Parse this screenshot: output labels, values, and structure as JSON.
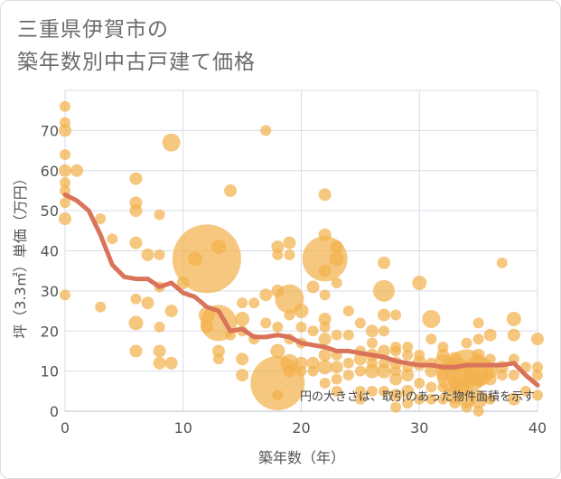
{
  "title_lines": [
    "三重県伊賀市の",
    "築年数別中古戸建て価格"
  ],
  "chart_data": {
    "type": "scatter",
    "xlabel": "築年数（年）",
    "ylabel": "坪（3.3㎡）単価（万円）",
    "xlim": [
      0,
      40
    ],
    "ylim": [
      0,
      80
    ],
    "x_ticks": [
      0,
      10,
      20,
      30,
      40
    ],
    "y_ticks": [
      0,
      10,
      20,
      30,
      40,
      50,
      60,
      70
    ],
    "grid": true,
    "note": "円の大きさは、取引のあった物件面積を示す",
    "colors": {
      "bubble": "#f2b24c",
      "line": "#d9735a",
      "grid": "#d7dde6"
    },
    "series": [
      {
        "type": "scatter",
        "points": [
          [
            0,
            76,
            6
          ],
          [
            0,
            72,
            6
          ],
          [
            0,
            70,
            7
          ],
          [
            0,
            64,
            6
          ],
          [
            0,
            60,
            7
          ],
          [
            0,
            57,
            6
          ],
          [
            0,
            55,
            6
          ],
          [
            0,
            52,
            6
          ],
          [
            0,
            48,
            7
          ],
          [
            0,
            29,
            6
          ],
          [
            1,
            60,
            7
          ],
          [
            3,
            48,
            6
          ],
          [
            3,
            26,
            6
          ],
          [
            4,
            43,
            6
          ],
          [
            6,
            58,
            7
          ],
          [
            6,
            52,
            7
          ],
          [
            6,
            50,
            7
          ],
          [
            6,
            42,
            7
          ],
          [
            6,
            28,
            6
          ],
          [
            6,
            22,
            8
          ],
          [
            6,
            15,
            7
          ],
          [
            7,
            39,
            7
          ],
          [
            7,
            27,
            7
          ],
          [
            8,
            49,
            6
          ],
          [
            8,
            39,
            6
          ],
          [
            8,
            31,
            6
          ],
          [
            8,
            21,
            6
          ],
          [
            8,
            15,
            7
          ],
          [
            8,
            12,
            7
          ],
          [
            9,
            67,
            10
          ],
          [
            9,
            25,
            7
          ],
          [
            9,
            12,
            7
          ],
          [
            10,
            32,
            7
          ],
          [
            11,
            38,
            8
          ],
          [
            12,
            38,
            38
          ],
          [
            12,
            24,
            9
          ],
          [
            12,
            21,
            7
          ],
          [
            13,
            41,
            8
          ],
          [
            13,
            22,
            20
          ],
          [
            13,
            15,
            7
          ],
          [
            13,
            13,
            6
          ],
          [
            14,
            55,
            7
          ],
          [
            14,
            19,
            6
          ],
          [
            15,
            27,
            6
          ],
          [
            15,
            23,
            8
          ],
          [
            15,
            20,
            6
          ],
          [
            15,
            13,
            7
          ],
          [
            15,
            9,
            7
          ],
          [
            16,
            27,
            6
          ],
          [
            16,
            18,
            6
          ],
          [
            17,
            70,
            6
          ],
          [
            17,
            29,
            7
          ],
          [
            17,
            22,
            6
          ],
          [
            18,
            41,
            7
          ],
          [
            18,
            39,
            6
          ],
          [
            18,
            30,
            7
          ],
          [
            18,
            21,
            6
          ],
          [
            18,
            15,
            8
          ],
          [
            18,
            7,
            30
          ],
          [
            18,
            4,
            6
          ],
          [
            19,
            42,
            7
          ],
          [
            19,
            39,
            6
          ],
          [
            19,
            28,
            16
          ],
          [
            19,
            24,
            6
          ],
          [
            19,
            18,
            6
          ],
          [
            19,
            12,
            10
          ],
          [
            19,
            10,
            7
          ],
          [
            20,
            25,
            8
          ],
          [
            20,
            21,
            6
          ],
          [
            20,
            17,
            6
          ],
          [
            20,
            12,
            7
          ],
          [
            20,
            10,
            6
          ],
          [
            21,
            31,
            7
          ],
          [
            21,
            20,
            6
          ],
          [
            21,
            12,
            7
          ],
          [
            21,
            10,
            6
          ],
          [
            22,
            54,
            7
          ],
          [
            22,
            44,
            7
          ],
          [
            22,
            38,
            25
          ],
          [
            22,
            35,
            7
          ],
          [
            22,
            29,
            6
          ],
          [
            22,
            23,
            7
          ],
          [
            22,
            21,
            6
          ],
          [
            22,
            18,
            7
          ],
          [
            22,
            14,
            7
          ],
          [
            22,
            11,
            8
          ],
          [
            22,
            7,
            6
          ],
          [
            23,
            41,
            7
          ],
          [
            23,
            38,
            8
          ],
          [
            23,
            32,
            6
          ],
          [
            23,
            19,
            6
          ],
          [
            23,
            14,
            6
          ],
          [
            23,
            11,
            7
          ],
          [
            23,
            8,
            6
          ],
          [
            23,
            5,
            6
          ],
          [
            24,
            25,
            6
          ],
          [
            24,
            19,
            6
          ],
          [
            24,
            12,
            6
          ],
          [
            24,
            9,
            6
          ],
          [
            25,
            22,
            6
          ],
          [
            25,
            15,
            6
          ],
          [
            25,
            13,
            7
          ],
          [
            25,
            10,
            6
          ],
          [
            25,
            5,
            6
          ],
          [
            25,
            3,
            6
          ],
          [
            26,
            20,
            7
          ],
          [
            26,
            17,
            6
          ],
          [
            26,
            14,
            7
          ],
          [
            26,
            12,
            6
          ],
          [
            26,
            10,
            8
          ],
          [
            26,
            5,
            6
          ],
          [
            27,
            37,
            7
          ],
          [
            27,
            30,
            12
          ],
          [
            27,
            24,
            7
          ],
          [
            27,
            20,
            6
          ],
          [
            27,
            15,
            7
          ],
          [
            27,
            12,
            6
          ],
          [
            27,
            10,
            8
          ],
          [
            27,
            5,
            6
          ],
          [
            28,
            24,
            6
          ],
          [
            28,
            16,
            6
          ],
          [
            28,
            15,
            6
          ],
          [
            28,
            12,
            7
          ],
          [
            28,
            10,
            6
          ],
          [
            28,
            8,
            7
          ],
          [
            28,
            4,
            7
          ],
          [
            28,
            1,
            6
          ],
          [
            29,
            16,
            6
          ],
          [
            29,
            14,
            6
          ],
          [
            29,
            11,
            6
          ],
          [
            29,
            9,
            7
          ],
          [
            29,
            5,
            7
          ],
          [
            29,
            2,
            6
          ],
          [
            30,
            32,
            8
          ],
          [
            30,
            14,
            6
          ],
          [
            30,
            12,
            8
          ],
          [
            30,
            7,
            6
          ],
          [
            30,
            3,
            6
          ],
          [
            31,
            23,
            10
          ],
          [
            31,
            18,
            6
          ],
          [
            31,
            12,
            6
          ],
          [
            31,
            10,
            7
          ],
          [
            31,
            6,
            6
          ],
          [
            31,
            3,
            6
          ],
          [
            32,
            16,
            6
          ],
          [
            32,
            14,
            7
          ],
          [
            32,
            12,
            10
          ],
          [
            32,
            9,
            7
          ],
          [
            32,
            6,
            6
          ],
          [
            32,
            3,
            6
          ],
          [
            33,
            13,
            8
          ],
          [
            33,
            11,
            7
          ],
          [
            33,
            9,
            20
          ],
          [
            33,
            7,
            7
          ],
          [
            33,
            4,
            10
          ],
          [
            33,
            2,
            6
          ],
          [
            34,
            17,
            6
          ],
          [
            34,
            10,
            24
          ],
          [
            34,
            7,
            8
          ],
          [
            34,
            3,
            10
          ],
          [
            34,
            1,
            6
          ],
          [
            35,
            22,
            6
          ],
          [
            35,
            18,
            6
          ],
          [
            35,
            14,
            7
          ],
          [
            35,
            10,
            17
          ],
          [
            35,
            8,
            8
          ],
          [
            35,
            3,
            10
          ],
          [
            35,
            0,
            6
          ],
          [
            36,
            19,
            7
          ],
          [
            36,
            13,
            6
          ],
          [
            36,
            10,
            8
          ],
          [
            36,
            8,
            7
          ],
          [
            36,
            3,
            6
          ],
          [
            37,
            37,
            6
          ],
          [
            37,
            11,
            7
          ],
          [
            37,
            9,
            6
          ],
          [
            38,
            23,
            8
          ],
          [
            38,
            19,
            7
          ],
          [
            38,
            13,
            6
          ],
          [
            38,
            9,
            6
          ],
          [
            38,
            3,
            7
          ],
          [
            39,
            11,
            6
          ],
          [
            39,
            5,
            6
          ],
          [
            40,
            18,
            7
          ],
          [
            40,
            11,
            6
          ],
          [
            40,
            9,
            6
          ],
          [
            40,
            4,
            6
          ]
        ]
      },
      {
        "type": "line",
        "points": [
          [
            0,
            54
          ],
          [
            1,
            52.5
          ],
          [
            2,
            50
          ],
          [
            3,
            44
          ],
          [
            4,
            36.5
          ],
          [
            5,
            33.5
          ],
          [
            6,
            33
          ],
          [
            7,
            33
          ],
          [
            8,
            31
          ],
          [
            9,
            32
          ],
          [
            10,
            29.5
          ],
          [
            11,
            28.5
          ],
          [
            12,
            26
          ],
          [
            13,
            25
          ],
          [
            14,
            20
          ],
          [
            15,
            20.5
          ],
          [
            16,
            18.5
          ],
          [
            17,
            18.5
          ],
          [
            18,
            19
          ],
          [
            19,
            18.5
          ],
          [
            20,
            17
          ],
          [
            21,
            16.5
          ],
          [
            22,
            16
          ],
          [
            23,
            15
          ],
          [
            24,
            15
          ],
          [
            25,
            14.5
          ],
          [
            26,
            14
          ],
          [
            27,
            13.5
          ],
          [
            28,
            12.5
          ],
          [
            29,
            12
          ],
          [
            30,
            11.5
          ],
          [
            31,
            11.5
          ],
          [
            32,
            11
          ],
          [
            33,
            11
          ],
          [
            34,
            11.5
          ],
          [
            35,
            11.5
          ],
          [
            36,
            11.5
          ],
          [
            37,
            11.5
          ],
          [
            38,
            12
          ],
          [
            39,
            9
          ],
          [
            40,
            6.5
          ]
        ]
      }
    ]
  }
}
